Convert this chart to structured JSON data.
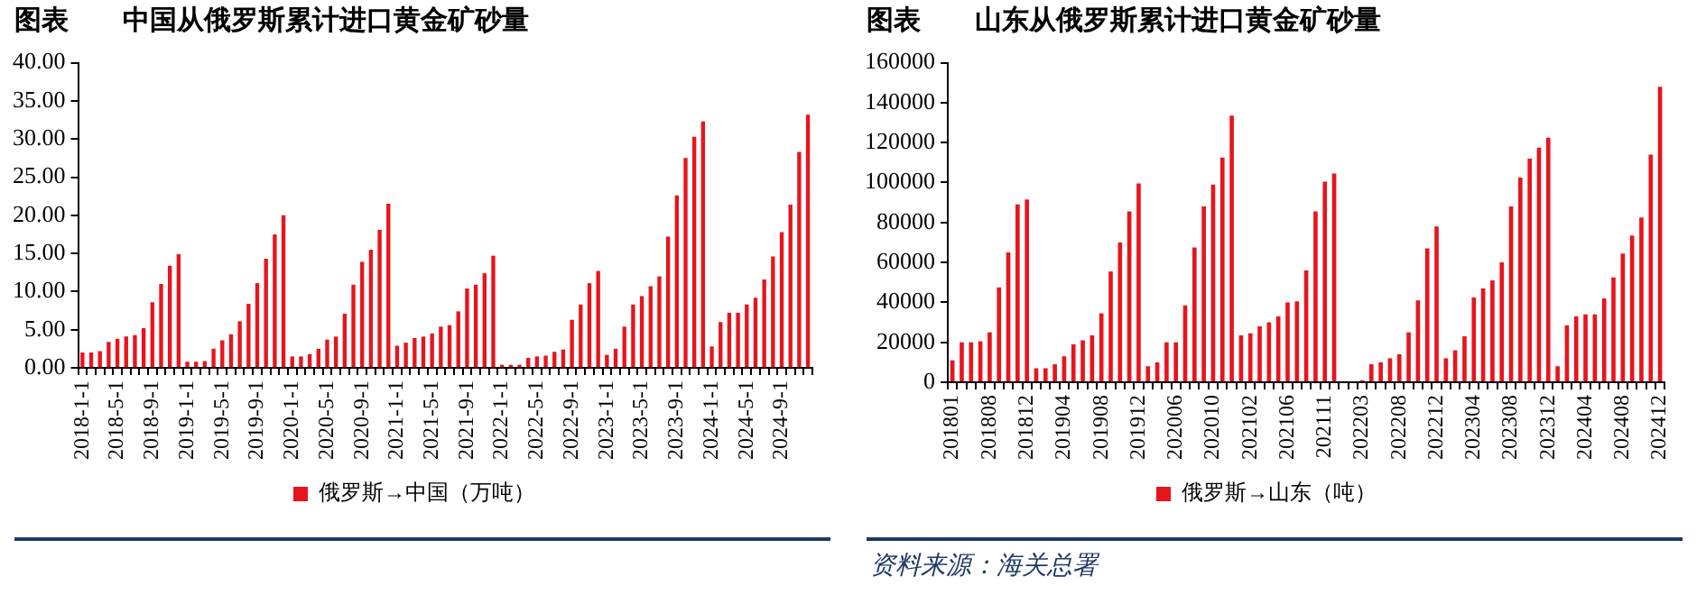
{
  "chart_data": [
    {
      "type": "bar",
      "title": "图表        中国从俄罗斯累计进口黄金矿砂量",
      "categories": [
        "2018-1-1",
        null,
        null,
        null,
        "2018-5-1",
        null,
        null,
        null,
        "2018-9-1",
        null,
        null,
        null,
        "2019-1-1",
        null,
        null,
        null,
        "2019-5-1",
        null,
        null,
        null,
        "2019-9-1",
        null,
        null,
        null,
        "2020-1-1",
        null,
        null,
        null,
        "2020-5-1",
        null,
        null,
        null,
        "2020-9-1",
        null,
        null,
        null,
        "2021-1-1",
        null,
        null,
        null,
        "2021-5-1",
        null,
        null,
        null,
        "2021-9-1",
        null,
        null,
        null,
        "2022-1-1",
        null,
        null,
        null,
        "2022-5-1",
        null,
        null,
        null,
        "2022-9-1",
        null,
        null,
        null,
        "2023-1-1",
        null,
        null,
        null,
        "2023-5-1",
        null,
        null,
        null,
        "2023-9-1",
        null,
        null,
        null,
        "2024-1-1",
        null,
        null,
        null,
        "2024-5-1",
        null,
        null,
        null,
        "2024-9-1",
        null,
        null,
        null
      ],
      "series": [
        {
          "name": "俄罗斯→中国（万吨）",
          "color": "#e8141c",
          "values": [
            2.0,
            2.0,
            2.2,
            3.4,
            3.8,
            4.1,
            4.3,
            5.2,
            8.6,
            11.0,
            13.4,
            14.9,
            0.8,
            0.8,
            0.9,
            2.5,
            3.6,
            4.4,
            6.1,
            8.4,
            11.1,
            14.3,
            17.5,
            20.0,
            1.5,
            1.5,
            1.8,
            2.5,
            3.7,
            4.1,
            7.1,
            10.9,
            13.9,
            15.5,
            18.1,
            21.5,
            2.9,
            3.3,
            3.9,
            4.1,
            4.5,
            5.4,
            5.6,
            7.4,
            10.4,
            10.9,
            12.4,
            14.7,
            0.4,
            0.4,
            0.4,
            1.3,
            1.5,
            1.6,
            2.1,
            2.4,
            6.3,
            8.3,
            11.1,
            12.7,
            1.7,
            2.5,
            5.4,
            8.3,
            9.4,
            10.7,
            12.0,
            17.2,
            22.6,
            27.5,
            30.3,
            32.3,
            2.8,
            6.0,
            7.2,
            7.2,
            8.3,
            9.2,
            11.6,
            14.6,
            17.8,
            21.4,
            28.3,
            33.2
          ]
        }
      ],
      "ylim": [
        0,
        40
      ],
      "yticks": [
        {
          "value": 0,
          "label": "0.00"
        },
        {
          "value": 5,
          "label": "5.00"
        },
        {
          "value": 10,
          "label": "10.00"
        },
        {
          "value": 15,
          "label": "15.00"
        },
        {
          "value": 20,
          "label": "20.00"
        },
        {
          "value": 25,
          "label": "25.00"
        },
        {
          "value": 30,
          "label": "30.00"
        },
        {
          "value": 35,
          "label": "35.00"
        },
        {
          "value": 40,
          "label": "40.00"
        }
      ],
      "grid": false,
      "legend": "bottom"
    },
    {
      "type": "bar",
      "title": "图表        山东从俄罗斯累计进口黄金矿砂量",
      "categories": [
        "201801",
        null,
        null,
        null,
        "201808",
        null,
        null,
        null,
        "201812",
        null,
        null,
        null,
        "201904",
        null,
        null,
        null,
        "201908",
        null,
        null,
        null,
        "201912",
        null,
        null,
        null,
        "202006",
        null,
        null,
        null,
        "202010",
        null,
        null,
        null,
        "202102",
        null,
        null,
        null,
        "202106",
        null,
        null,
        null,
        "202111",
        null,
        null,
        null,
        "202203",
        null,
        null,
        null,
        "202208",
        null,
        null,
        null,
        "202212",
        null,
        null,
        null,
        "202304",
        null,
        null,
        null,
        "202308",
        null,
        null,
        null,
        "202312",
        null,
        null,
        null,
        "202404",
        null,
        null,
        null,
        "202408",
        null,
        null,
        null,
        "202412"
      ],
      "series": [
        {
          "name": "俄罗斯→山东（吨）",
          "color": "#e8141c",
          "values": [
            11000,
            20000,
            20000,
            20500,
            25000,
            47500,
            65000,
            89000,
            91500,
            7000,
            7000,
            9000,
            13000,
            19000,
            21000,
            23500,
            34500,
            55500,
            70000,
            85500,
            99500,
            8000,
            10000,
            20000,
            20000,
            38500,
            67500,
            88000,
            99000,
            112500,
            133500,
            23500,
            24500,
            28000,
            30000,
            33000,
            40000,
            40500,
            56000,
            85500,
            100500,
            104500,
            0,
            0,
            1000,
            9000,
            10000,
            12000,
            14000,
            25000,
            41000,
            67000,
            78000,
            12000,
            16000,
            23000,
            42500,
            47000,
            51000,
            60000,
            88000,
            102500,
            112000,
            117500,
            122500,
            8000,
            28500,
            33000,
            34000,
            34000,
            42000,
            52500,
            64500,
            73500,
            82500,
            114000,
            148000
          ]
        }
      ],
      "ylim": [
        0,
        160000
      ],
      "yticks": [
        0,
        20000,
        40000,
        60000,
        80000,
        100000,
        120000,
        140000,
        160000
      ],
      "grid": false,
      "legend": "bottom",
      "annotations": [
        "资料来源：海关总署"
      ]
    }
  ]
}
